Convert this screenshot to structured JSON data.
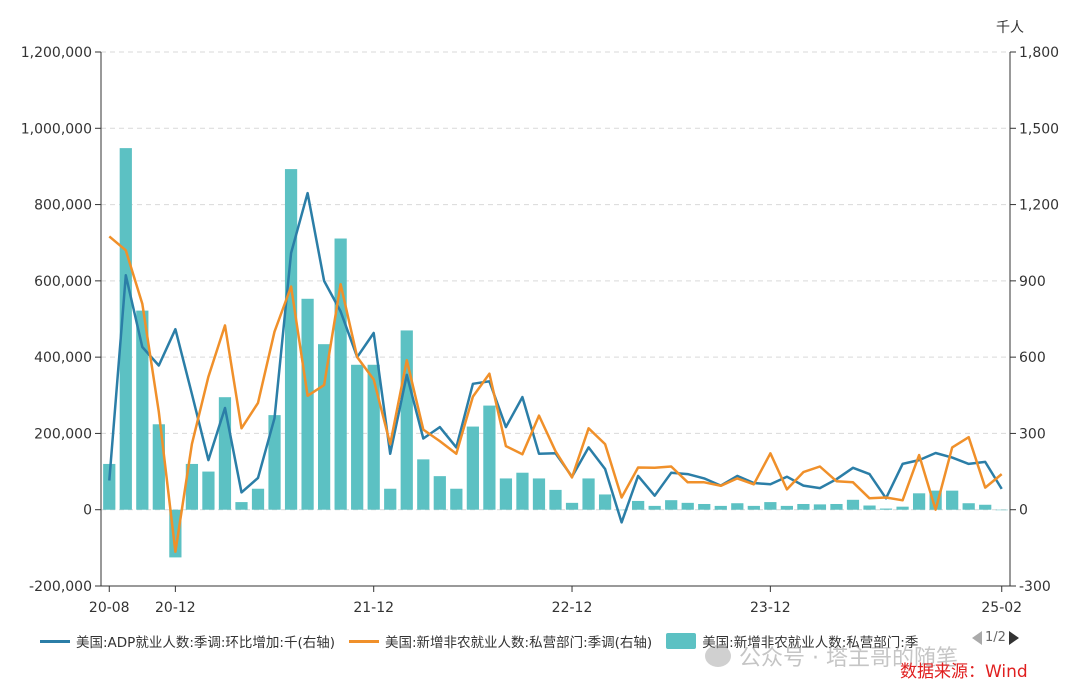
{
  "chart_data": {
    "type": "bar+line",
    "left_axis": {
      "ticks": [
        "1,200,000",
        "1,000,000",
        "800,000",
        "600,000",
        "400,000",
        "200,000",
        "0",
        "-200,000"
      ],
      "ylim": [
        -200000,
        1200000
      ]
    },
    "right_axis": {
      "unit": "千人",
      "ticks": [
        "1,800",
        "1,500",
        "1,200",
        "900",
        "600",
        "300",
        "0",
        "-300"
      ],
      "ylim": [
        -300,
        1800
      ]
    },
    "x_tick_labels": [
      "20-08",
      "20-12",
      "21-12",
      "22-12",
      "23-12",
      "25-02"
    ],
    "x_tick_index": [
      0,
      4,
      16,
      28,
      40,
      54
    ],
    "n_periods": 55,
    "series": [
      {
        "name": "美国:ADP就业人数:季调:环比增加:千(右轴)",
        "type": "line",
        "axis": "right",
        "color": "#2b7ea7",
        "values": [
          115,
          922,
          640,
          567,
          710,
          455,
          195,
          400,
          68,
          125,
          360,
          1010,
          1245,
          900,
          780,
          600,
          695,
          220,
          530,
          280,
          325,
          245,
          495,
          505,
          325,
          443,
          220,
          222,
          130,
          245,
          160,
          -50,
          133,
          55,
          145,
          140,
          123,
          95,
          133,
          105,
          100,
          130,
          95,
          85,
          120,
          165,
          140,
          45,
          180,
          195,
          223,
          205,
          180,
          188,
          82
        ]
      },
      {
        "name": "美国:新增非农就业人数:私营部门:季调(右轴)",
        "type": "line",
        "axis": "right",
        "color": "#f0902a",
        "values": [
          1075,
          1020,
          810,
          385,
          -165,
          258,
          523,
          725,
          320,
          420,
          700,
          878,
          448,
          490,
          887,
          600,
          512,
          258,
          588,
          315,
          270,
          220,
          445,
          535,
          250,
          218,
          370,
          230,
          127,
          320,
          258,
          48,
          166,
          165,
          170,
          108,
          108,
          94,
          123,
          100,
          222,
          80,
          148,
          170,
          112,
          108,
          45,
          48,
          37,
          215,
          0,
          245,
          285,
          87,
          140
        ]
      },
      {
        "name": "美国:新增非农就业人数:私营部门:季",
        "type": "bar",
        "axis": "left",
        "color": "#5cc1c3",
        "values": [
          120000,
          948000,
          522000,
          224000,
          -125000,
          120000,
          100000,
          295000,
          20000,
          55000,
          248000,
          893000,
          553000,
          434000,
          711000,
          380000,
          380000,
          55000,
          470000,
          132000,
          88000,
          55000,
          218000,
          273000,
          82000,
          97000,
          82000,
          52000,
          18000,
          82000,
          40000,
          0,
          23000,
          10000,
          25000,
          18000,
          15000,
          10000,
          17000,
          10000,
          20000,
          10000,
          15000,
          14000,
          15000,
          26000,
          11000,
          3000,
          8000,
          43000,
          50000,
          50000,
          17000,
          13000,
          0
        ]
      }
    ],
    "legend_position": "bottom"
  },
  "legend": {
    "page": "1/2"
  },
  "source": "数据来源：Wind",
  "watermark": "公众号 · 塔主哥的随笔"
}
